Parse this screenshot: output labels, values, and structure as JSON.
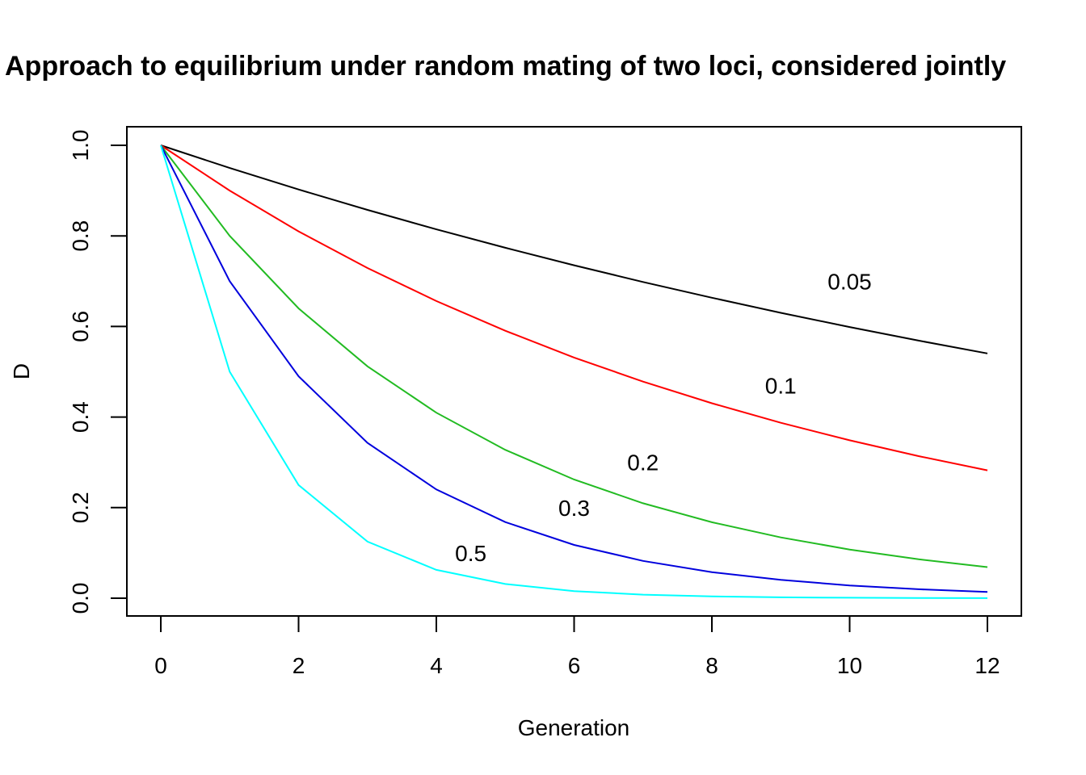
{
  "chart_data": {
    "type": "line",
    "title": "Approach to equilibrium under random mating of two loci, considered jointly",
    "xlabel": "Generation",
    "ylabel": "D",
    "xlim": [
      0,
      12
    ],
    "ylim": [
      0,
      1
    ],
    "xticks": [
      0,
      2,
      4,
      6,
      8,
      10,
      12
    ],
    "yticks": [
      0.0,
      0.2,
      0.4,
      0.6,
      0.8,
      1.0
    ],
    "ytick_labels": [
      "0.0",
      "0.2",
      "0.4",
      "0.6",
      "0.8",
      "1.0"
    ],
    "grid": false,
    "legend": "none",
    "x": [
      0,
      1,
      2,
      3,
      4,
      5,
      6,
      7,
      8,
      9,
      10,
      11,
      12
    ],
    "series": [
      {
        "label": "0.05",
        "color": "#000000",
        "label_at": [
          10,
          0.7
        ],
        "values": [
          1.0,
          0.95,
          0.9025,
          0.8574,
          0.8145,
          0.7738,
          0.7351,
          0.6983,
          0.6634,
          0.6302,
          0.5987,
          0.5688,
          0.5404
        ]
      },
      {
        "label": "0.1",
        "color": "#ff0000",
        "label_at": [
          9,
          0.47
        ],
        "values": [
          1.0,
          0.9,
          0.81,
          0.729,
          0.6561,
          0.5905,
          0.5314,
          0.4783,
          0.4305,
          0.3874,
          0.3487,
          0.3138,
          0.2824
        ]
      },
      {
        "label": "0.2",
        "color": "#22bb22",
        "label_at": [
          7,
          0.3
        ],
        "values": [
          1.0,
          0.8,
          0.64,
          0.512,
          0.4096,
          0.3277,
          0.2621,
          0.2097,
          0.1678,
          0.1342,
          0.1074,
          0.0859,
          0.0687
        ]
      },
      {
        "label": "0.3",
        "color": "#0000dd",
        "label_at": [
          6,
          0.2
        ],
        "values": [
          1.0,
          0.7,
          0.49,
          0.343,
          0.2401,
          0.1681,
          0.1176,
          0.0824,
          0.0576,
          0.0404,
          0.0282,
          0.0198,
          0.0138
        ]
      },
      {
        "label": "0.5",
        "color": "#00ffff",
        "label_at": [
          4.5,
          0.1
        ],
        "values": [
          1.0,
          0.5,
          0.25,
          0.125,
          0.0625,
          0.0313,
          0.0156,
          0.0078,
          0.0039,
          0.002,
          0.001,
          0.0005,
          0.0002
        ]
      }
    ]
  }
}
